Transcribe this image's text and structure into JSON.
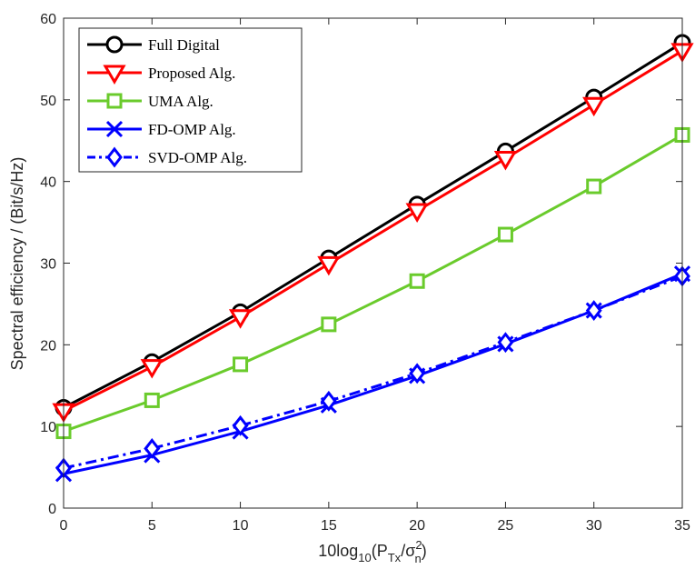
{
  "chart_data": {
    "type": "line",
    "title": "",
    "xlabel": {
      "prefix": "10log",
      "sub1": "10",
      "open": "(P",
      "sub2": "Tx",
      "slash": "/σ",
      "sup": "2",
      "sub3": "n",
      "close": ")"
    },
    "ylabel": "Spectral efficiency / (Bit/s/Hz)",
    "xlim": [
      0,
      35
    ],
    "ylim": [
      0,
      60
    ],
    "xticks": [
      "0",
      "5",
      "10",
      "15",
      "20",
      "25",
      "30",
      "35"
    ],
    "yticks": [
      "0",
      "10",
      "20",
      "30",
      "40",
      "50",
      "60"
    ],
    "grid": false,
    "legend_position": "top-left",
    "x": [
      0,
      5,
      10,
      15,
      20,
      25,
      30,
      35
    ],
    "series": [
      {
        "name": "Full Digital",
        "color": "#000000",
        "marker": "circle",
        "dash": "solid",
        "values": [
          12.3,
          17.9,
          24.0,
          30.6,
          37.2,
          43.7,
          50.3,
          57.0
        ]
      },
      {
        "name": "Proposed Alg.",
        "color": "#ff0000",
        "marker": "triangle-down",
        "dash": "solid",
        "values": [
          11.9,
          17.3,
          23.4,
          29.9,
          36.4,
          42.8,
          49.4,
          56.0
        ]
      },
      {
        "name": "UMA Alg.",
        "color": "#6acb2c",
        "marker": "square",
        "dash": "solid",
        "values": [
          9.4,
          13.2,
          17.6,
          22.5,
          27.8,
          33.5,
          39.4,
          45.7
        ]
      },
      {
        "name": "FD-OMP Alg.",
        "color": "#0000ff",
        "marker": "x",
        "dash": "solid",
        "values": [
          4.2,
          6.5,
          9.4,
          12.6,
          16.2,
          20.1,
          24.2,
          28.7
        ]
      },
      {
        "name": "SVD-OMP Alg.",
        "color": "#0000ff",
        "marker": "diamond",
        "dash": "dashdot",
        "values": [
          4.9,
          7.3,
          10.1,
          13.1,
          16.5,
          20.3,
          24.2,
          28.4
        ]
      }
    ]
  }
}
